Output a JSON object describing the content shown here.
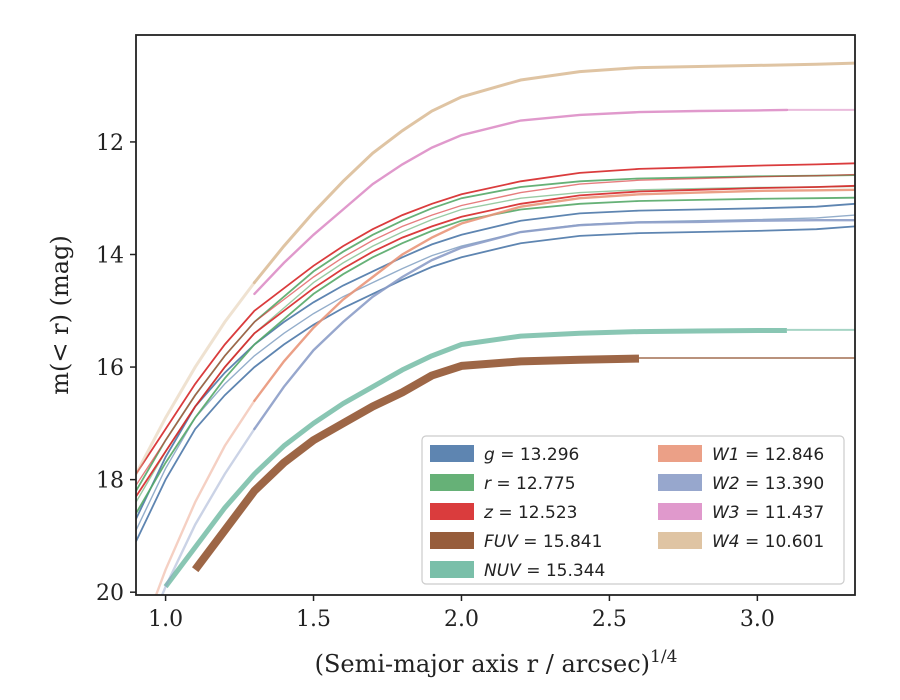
{
  "chart_data": {
    "type": "line",
    "xlabel": "(Semi-major axis r / arcsec)",
    "xlabel_super": "1/4",
    "ylabel": "m(< r) (mag)",
    "xlim": [
      0.9,
      3.33
    ],
    "ylim": [
      20.05,
      10.1
    ],
    "y_inverted": true,
    "xticks": [
      1.0,
      1.5,
      2.0,
      2.5,
      3.0
    ],
    "xtick_labels": [
      "1.0",
      "1.5",
      "2.0",
      "2.5",
      "3.0"
    ],
    "yticks": [
      12,
      14,
      16,
      18,
      20
    ],
    "ytick_labels": [
      "12",
      "14",
      "16",
      "18",
      "20"
    ],
    "grid": false,
    "legend_position": "lower-right",
    "series": [
      {
        "key": "g",
        "label": "g = 13.296",
        "color": "#4c78a8",
        "x": [
          0.9,
          1.0,
          1.1,
          1.2,
          1.3,
          1.4,
          1.5,
          1.6,
          1.7,
          1.8,
          1.9,
          2.0,
          2.2,
          2.4,
          2.6,
          2.8,
          3.0,
          3.2,
          3.33
        ],
        "y": [
          18.9,
          17.8,
          16.9,
          16.3,
          15.8,
          15.4,
          15.05,
          14.75,
          14.5,
          14.25,
          14.02,
          13.85,
          13.6,
          13.47,
          13.42,
          13.4,
          13.38,
          13.35,
          13.3
        ],
        "spread": 0.2,
        "faded_from": 3.2
      },
      {
        "key": "r",
        "label": "r = 12.775",
        "color": "#55a868",
        "x": [
          0.9,
          1.0,
          1.1,
          1.2,
          1.3,
          1.4,
          1.5,
          1.6,
          1.7,
          1.8,
          1.9,
          2.0,
          2.2,
          2.4,
          2.6,
          2.8,
          3.0,
          3.2,
          3.33
        ],
        "y": [
          18.4,
          17.5,
          16.7,
          16.0,
          15.4,
          14.95,
          14.5,
          14.15,
          13.85,
          13.6,
          13.38,
          13.2,
          13.0,
          12.9,
          12.85,
          12.83,
          12.81,
          12.8,
          12.79
        ],
        "spread": 0.2,
        "faded_from": 3.2
      },
      {
        "key": "z",
        "label": "z = 12.523",
        "color": "#d62728",
        "x": [
          0.9,
          1.0,
          1.1,
          1.2,
          1.3,
          1.4,
          1.5,
          1.6,
          1.7,
          1.8,
          1.9,
          2.0,
          2.2,
          2.4,
          2.6,
          2.8,
          3.0,
          3.2,
          3.33
        ],
        "y": [
          18.1,
          17.3,
          16.5,
          15.8,
          15.2,
          14.8,
          14.4,
          14.05,
          13.75,
          13.5,
          13.3,
          13.13,
          12.9,
          12.75,
          12.68,
          12.65,
          12.62,
          12.6,
          12.58
        ],
        "spread": 0.2,
        "faded_from": 3.2
      },
      {
        "key": "FUV",
        "label": "FUV = 15.841",
        "color": "#8c4b26",
        "x": [
          1.1,
          1.2,
          1.3,
          1.4,
          1.5,
          1.6,
          1.7,
          1.8,
          1.9,
          2.0,
          2.2,
          2.4,
          2.6
        ],
        "y": [
          19.6,
          18.9,
          18.2,
          17.7,
          17.3,
          17.0,
          16.7,
          16.45,
          16.15,
          15.98,
          15.9,
          15.87,
          15.85
        ],
        "width": 8,
        "opacity": 0.85,
        "tail_from": 2.6,
        "tail_to": 3.33,
        "tail_y": 15.84
      },
      {
        "key": "NUV",
        "label": "NUV = 15.344",
        "color": "#6cb8a0",
        "x": [
          1.0,
          1.1,
          1.2,
          1.3,
          1.4,
          1.5,
          1.6,
          1.7,
          1.8,
          1.9,
          2.0,
          2.2,
          2.4,
          2.6,
          2.8,
          3.0,
          3.1
        ],
        "y": [
          19.9,
          19.2,
          18.5,
          17.9,
          17.4,
          17.0,
          16.65,
          16.35,
          16.05,
          15.8,
          15.6,
          15.45,
          15.4,
          15.37,
          15.36,
          15.35,
          15.35
        ],
        "width": 5,
        "opacity": 0.8,
        "tail_from": 3.1,
        "tail_to": 3.33,
        "tail_y": 15.34
      },
      {
        "key": "W1",
        "label": "W1 = 12.846",
        "color": "#e9967a",
        "x": [
          0.9,
          1.0,
          1.1,
          1.2,
          1.3,
          1.4,
          1.5,
          1.6,
          1.7,
          1.8,
          1.9,
          2.0,
          2.2,
          2.4,
          2.6,
          2.8,
          3.0,
          3.2,
          3.33
        ],
        "y": [
          21.0,
          19.6,
          18.4,
          17.4,
          16.6,
          15.9,
          15.3,
          14.8,
          14.4,
          14.0,
          13.7,
          13.45,
          13.15,
          13.0,
          12.93,
          12.9,
          12.87,
          12.86,
          12.85
        ],
        "width": 2.4,
        "faded_until": 1.3
      },
      {
        "key": "W2",
        "label": "W2 = 13.390",
        "color": "#8c9dc8",
        "x": [
          0.9,
          1.0,
          1.1,
          1.2,
          1.3,
          1.4,
          1.5,
          1.6,
          1.7,
          1.8,
          1.9,
          2.0,
          2.2,
          2.4,
          2.6,
          2.8,
          3.0,
          3.2,
          3.33
        ],
        "y": [
          21.2,
          19.9,
          18.8,
          17.9,
          17.1,
          16.35,
          15.7,
          15.2,
          14.75,
          14.4,
          14.1,
          13.88,
          13.6,
          13.48,
          13.43,
          13.42,
          13.4,
          13.39,
          13.39
        ],
        "width": 2.4,
        "faded_until": 1.3
      },
      {
        "key": "W3",
        "label": "W3 = 11.437",
        "color": "#dd8ec6",
        "x": [
          1.3,
          1.4,
          1.5,
          1.6,
          1.7,
          1.8,
          1.9,
          2.0,
          2.2,
          2.4,
          2.6,
          2.8,
          3.0,
          3.1
        ],
        "y": [
          14.7,
          14.15,
          13.65,
          13.2,
          12.75,
          12.4,
          12.1,
          11.88,
          11.62,
          11.52,
          11.47,
          11.45,
          11.44,
          11.43
        ],
        "width": 2.4,
        "faded_until": 1.3,
        "tail_from": 3.1,
        "tail_to": 3.33,
        "tail_y": 11.43
      },
      {
        "key": "W4",
        "label": "W4 = 10.601",
        "color": "#dcbe99",
        "x": [
          0.9,
          1.0,
          1.1,
          1.2,
          1.3,
          1.4,
          1.5,
          1.6,
          1.7,
          1.8,
          1.9,
          2.0,
          2.2,
          2.4,
          2.6,
          2.8,
          3.0,
          3.2,
          3.33
        ],
        "y": [
          17.9,
          16.9,
          16.0,
          15.2,
          14.5,
          13.85,
          13.25,
          12.7,
          12.2,
          11.8,
          11.45,
          11.2,
          10.9,
          10.75,
          10.68,
          10.66,
          10.64,
          10.62,
          10.6
        ],
        "width": 3,
        "faded_until": 1.3
      }
    ]
  }
}
